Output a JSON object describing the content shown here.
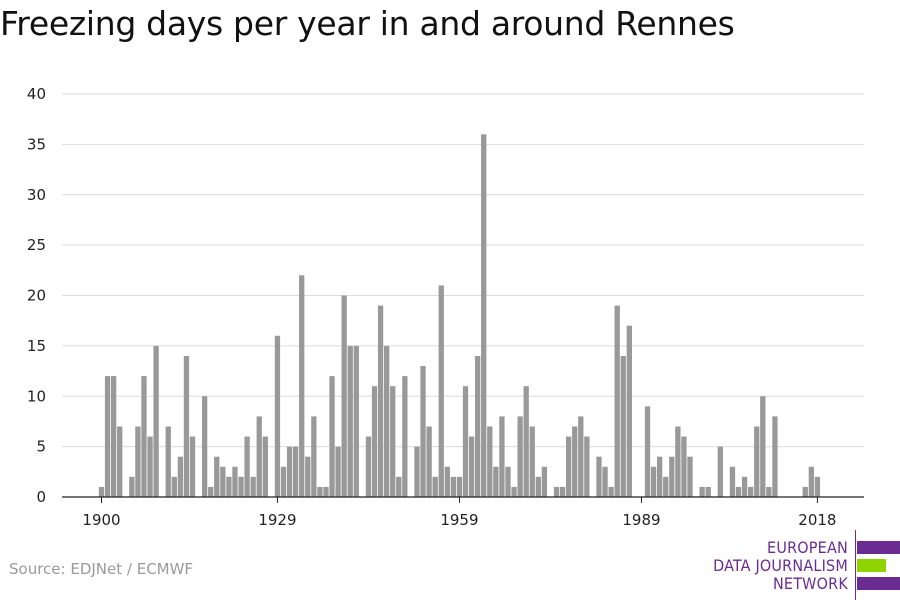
{
  "chart_data": {
    "type": "bar",
    "title": "Freezing days per year in and around Rennes",
    "xlabel": "",
    "ylabel": "",
    "ylim": [
      0,
      40
    ],
    "y_ticks": [
      0,
      5,
      10,
      15,
      20,
      25,
      30,
      35,
      40
    ],
    "x_tick_labels": [
      "1900",
      "1929",
      "1959",
      "1989",
      "2018"
    ],
    "grid": true,
    "bar_color": "#999999",
    "x": [
      1900,
      1901,
      1902,
      1903,
      1904,
      1905,
      1906,
      1907,
      1908,
      1909,
      1910,
      1911,
      1912,
      1913,
      1914,
      1915,
      1916,
      1917,
      1918,
      1919,
      1920,
      1921,
      1922,
      1923,
      1924,
      1925,
      1926,
      1927,
      1928,
      1929,
      1930,
      1931,
      1932,
      1933,
      1934,
      1935,
      1936,
      1937,
      1938,
      1939,
      1940,
      1941,
      1942,
      1943,
      1944,
      1945,
      1946,
      1947,
      1948,
      1949,
      1950,
      1951,
      1952,
      1953,
      1954,
      1955,
      1956,
      1957,
      1958,
      1959,
      1960,
      1961,
      1962,
      1963,
      1964,
      1965,
      1966,
      1967,
      1968,
      1969,
      1970,
      1971,
      1972,
      1973,
      1974,
      1975,
      1976,
      1977,
      1978,
      1979,
      1980,
      1981,
      1982,
      1983,
      1984,
      1985,
      1986,
      1987,
      1988,
      1989,
      1990,
      1991,
      1992,
      1993,
      1994,
      1995,
      1996,
      1997,
      1998,
      1999,
      2000,
      2001,
      2002,
      2003,
      2004,
      2005,
      2006,
      2007,
      2008,
      2009,
      2010,
      2011,
      2012,
      2013,
      2014,
      2015,
      2016,
      2017,
      2018
    ],
    "values": [
      1,
      12,
      12,
      7,
      0,
      2,
      7,
      12,
      6,
      15,
      0,
      7,
      2,
      4,
      14,
      6,
      0,
      10,
      1,
      4,
      3,
      2,
      3,
      2,
      6,
      2,
      8,
      6,
      0,
      16,
      3,
      5,
      5,
      22,
      4,
      8,
      1,
      1,
      12,
      5,
      20,
      15,
      15,
      0,
      6,
      11,
      19,
      15,
      11,
      2,
      12,
      0,
      5,
      13,
      7,
      2,
      21,
      3,
      2,
      2,
      11,
      6,
      14,
      36,
      7,
      3,
      8,
      3,
      1,
      8,
      11,
      7,
      2,
      3,
      0,
      1,
      1,
      6,
      7,
      8,
      6,
      0,
      4,
      3,
      1,
      19,
      14,
      17,
      0,
      0,
      9,
      3,
      4,
      2,
      4,
      7,
      6,
      4,
      0,
      1,
      1,
      0,
      5,
      0,
      3,
      1,
      2,
      1,
      7,
      10,
      1,
      8,
      0,
      0,
      0,
      0,
      1,
      3,
      2
    ]
  },
  "source": "Source: EDJNet / ECMWF",
  "logo": {
    "lines": [
      "EUROPEAN",
      "DATA JOURNALISM",
      "NETWORK"
    ],
    "purple": "#6a2c91",
    "green": "#8fd400"
  }
}
